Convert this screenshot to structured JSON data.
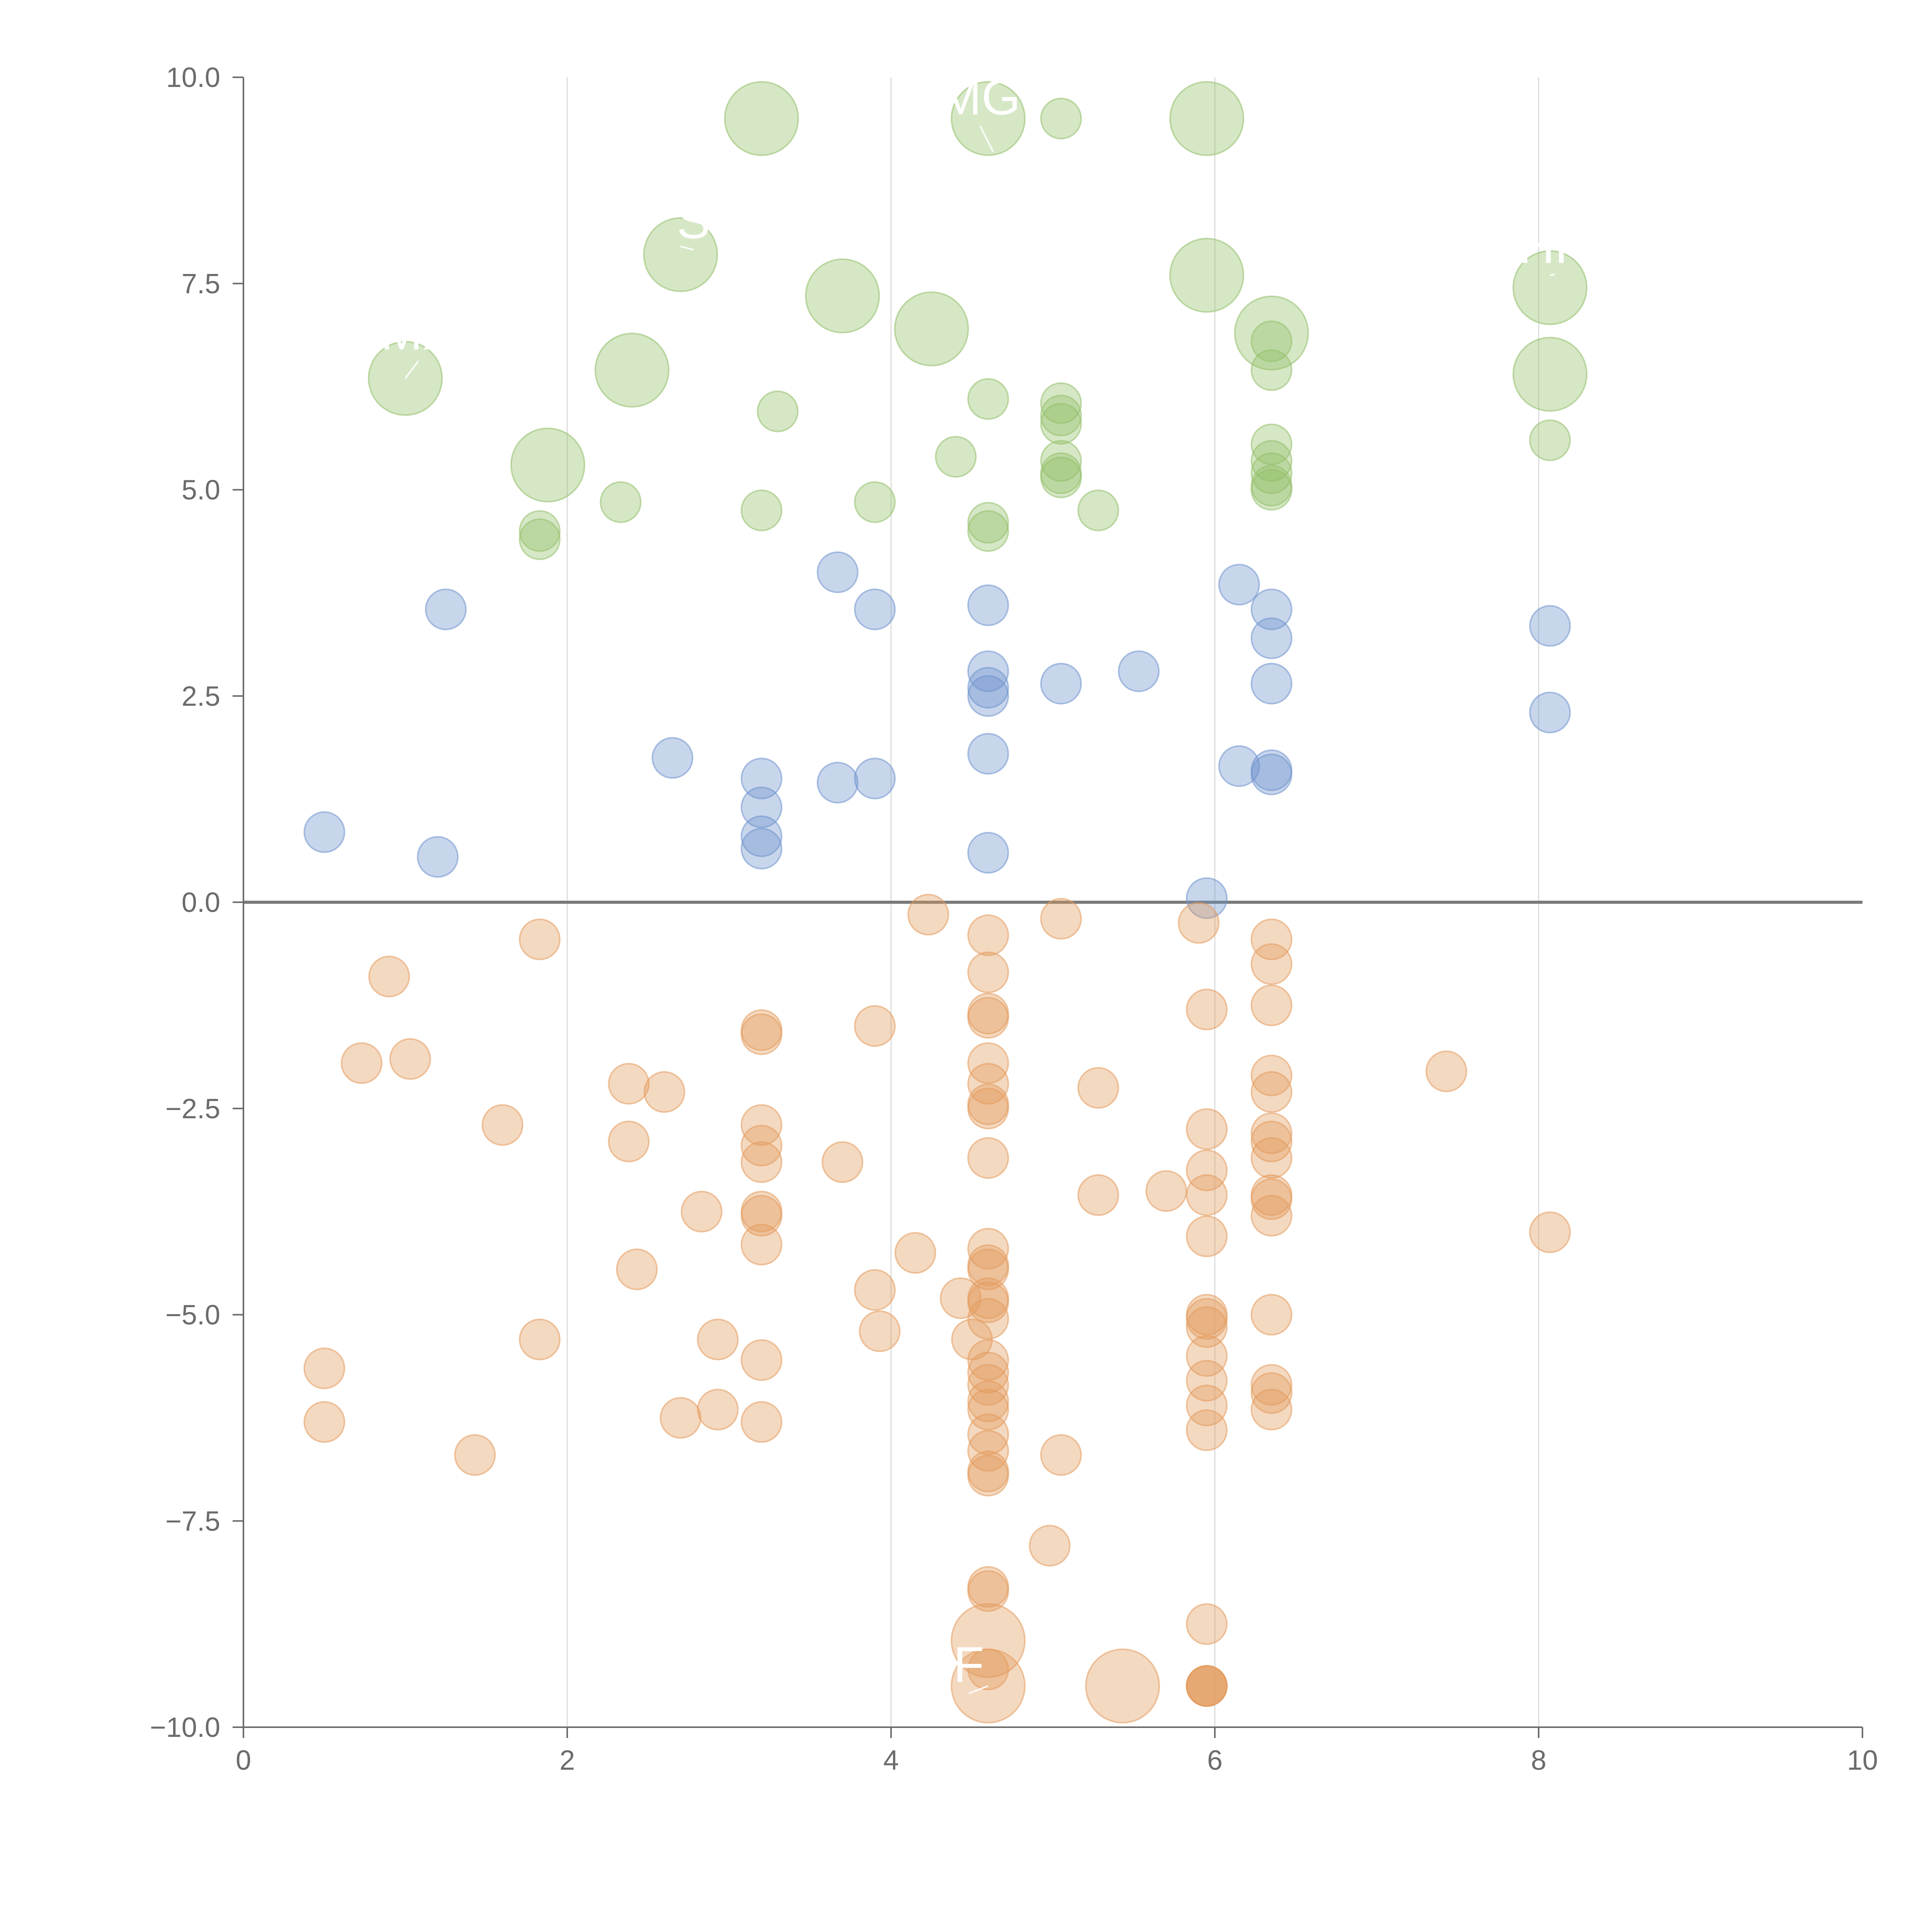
{
  "chart_data": {
    "type": "scatter",
    "title": "",
    "xlabel": "",
    "ylabel": "",
    "xlim": [
      0,
      10
    ],
    "ylim": [
      -10,
      10
    ],
    "grid": "vertical",
    "x_ticks": [
      "0",
      "2",
      "4",
      "6",
      "8",
      "10"
    ],
    "x_tick_values": [
      0,
      2,
      4,
      6,
      8,
      10
    ],
    "y_ticks": [
      "10.0",
      "7.5",
      "5.0",
      "2.5",
      "0.0",
      "−2.5",
      "−5.0",
      "−7.5",
      "−10.0"
    ],
    "y_tick_values": [
      10,
      7.5,
      5,
      2.5,
      0,
      -2.5,
      -5,
      -7.5,
      -10
    ],
    "reference_line_y": 0,
    "colors": {
      "green": "#93c06a",
      "blue": "#6f93cd",
      "orange": "#e39a5d",
      "axis": "#6b6b6b",
      "grid": "#dcdcdc"
    },
    "series": [
      {
        "name": "green",
        "color": "#93c06a",
        "points": [
          [
            3.2,
            9.5,
            3
          ],
          [
            4.6,
            9.5,
            3
          ],
          [
            5.05,
            9.5,
            1
          ],
          [
            5.95,
            9.5,
            3
          ],
          [
            2.7,
            7.85,
            3
          ],
          [
            3.7,
            7.35,
            3
          ],
          [
            5.95,
            7.6,
            3
          ],
          [
            8.07,
            7.45,
            3
          ],
          [
            1.0,
            6.35,
            3
          ],
          [
            2.4,
            6.45,
            3
          ],
          [
            4.25,
            6.95,
            3
          ],
          [
            6.35,
            6.9,
            3
          ],
          [
            8.07,
            6.4,
            3
          ],
          [
            1.88,
            5.3,
            3
          ],
          [
            3.3,
            5.95,
            1
          ],
          [
            4.6,
            6.1,
            1
          ],
          [
            5.05,
            6.05,
            1
          ],
          [
            5.05,
            5.9,
            1
          ],
          [
            5.05,
            5.8,
            1
          ],
          [
            6.35,
            6.8,
            1
          ],
          [
            6.35,
            6.45,
            1
          ],
          [
            6.35,
            5.55,
            1
          ],
          [
            6.35,
            5.35,
            1
          ],
          [
            6.35,
            5.2,
            1
          ],
          [
            6.35,
            5.05,
            1
          ],
          [
            6.35,
            5.0,
            1
          ],
          [
            8.07,
            5.6,
            1
          ],
          [
            4.4,
            5.4,
            1
          ],
          [
            5.05,
            5.35,
            1
          ],
          [
            5.05,
            5.2,
            1
          ],
          [
            5.05,
            5.15,
            1
          ],
          [
            1.83,
            4.5,
            1
          ],
          [
            1.83,
            4.4,
            1
          ],
          [
            2.33,
            4.85,
            1
          ],
          [
            3.2,
            4.75,
            1
          ],
          [
            3.9,
            4.85,
            1
          ],
          [
            4.6,
            4.6,
            1
          ],
          [
            4.6,
            4.5,
            1
          ],
          [
            5.28,
            4.75,
            1
          ]
        ]
      },
      {
        "name": "blue",
        "color": "#6f93cd",
        "points": [
          [
            1.25,
            3.55,
            1
          ],
          [
            3.67,
            4.0,
            1
          ],
          [
            3.9,
            3.55,
            1
          ],
          [
            4.6,
            3.6,
            1
          ],
          [
            6.15,
            3.85,
            1
          ],
          [
            6.35,
            3.55,
            1
          ],
          [
            6.35,
            3.2,
            1
          ],
          [
            8.07,
            3.35,
            1
          ],
          [
            4.6,
            2.8,
            1
          ],
          [
            4.6,
            2.6,
            1
          ],
          [
            4.6,
            2.5,
            1
          ],
          [
            5.05,
            2.65,
            1
          ],
          [
            5.53,
            2.8,
            1
          ],
          [
            6.35,
            2.65,
            1
          ],
          [
            8.07,
            2.3,
            1
          ],
          [
            2.65,
            1.75,
            1
          ],
          [
            3.2,
            1.5,
            1
          ],
          [
            3.2,
            1.15,
            1
          ],
          [
            3.67,
            1.45,
            1
          ],
          [
            3.9,
            1.5,
            1
          ],
          [
            4.6,
            1.8,
            1
          ],
          [
            6.15,
            1.65,
            1
          ],
          [
            6.35,
            1.6,
            1
          ],
          [
            6.35,
            1.55,
            1
          ],
          [
            0.5,
            0.85,
            1
          ],
          [
            1.2,
            0.55,
            1
          ],
          [
            3.2,
            0.8,
            1
          ],
          [
            3.2,
            0.65,
            1
          ],
          [
            4.6,
            0.6,
            1
          ],
          [
            5.95,
            0.05,
            1
          ]
        ]
      },
      {
        "name": "orange",
        "color": "#e39a5d",
        "points": [
          [
            4.23,
            -0.15,
            1
          ],
          [
            5.05,
            -0.2,
            1
          ],
          [
            5.9,
            -0.25,
            1
          ],
          [
            4.6,
            -0.4,
            1
          ],
          [
            6.35,
            -0.45,
            1
          ],
          [
            1.83,
            -0.45,
            1
          ],
          [
            0.9,
            -0.9,
            1
          ],
          [
            4.6,
            -0.85,
            1
          ],
          [
            6.35,
            -0.75,
            1
          ],
          [
            5.95,
            -1.3,
            1
          ],
          [
            6.35,
            -1.25,
            1
          ],
          [
            3.2,
            -1.6,
            1
          ],
          [
            3.2,
            -1.55,
            1
          ],
          [
            3.9,
            -1.5,
            1
          ],
          [
            4.6,
            -1.35,
            1
          ],
          [
            4.6,
            -1.4,
            1
          ],
          [
            0.73,
            -1.95,
            1
          ],
          [
            1.03,
            -1.9,
            1
          ],
          [
            4.6,
            -1.95,
            1
          ],
          [
            6.35,
            -2.1,
            1
          ],
          [
            7.43,
            -2.05,
            1
          ],
          [
            2.38,
            -2.2,
            1
          ],
          [
            2.6,
            -2.3,
            1
          ],
          [
            4.6,
            -2.2,
            1
          ],
          [
            5.28,
            -2.25,
            1
          ],
          [
            6.35,
            -2.3,
            1
          ],
          [
            4.6,
            -2.45,
            1
          ],
          [
            4.6,
            -2.5,
            1
          ],
          [
            1.6,
            -2.7,
            1
          ],
          [
            2.38,
            -2.9,
            1
          ],
          [
            3.2,
            -2.7,
            1
          ],
          [
            3.2,
            -2.95,
            1
          ],
          [
            3.2,
            -3.15,
            1
          ],
          [
            3.7,
            -3.15,
            1
          ],
          [
            4.6,
            -3.1,
            1
          ],
          [
            5.95,
            -2.75,
            1
          ],
          [
            5.95,
            -3.25,
            1
          ],
          [
            6.35,
            -2.8,
            1
          ],
          [
            6.35,
            -2.9,
            1
          ],
          [
            6.35,
            -3.1,
            1
          ],
          [
            5.28,
            -3.55,
            1
          ],
          [
            5.7,
            -3.5,
            1
          ],
          [
            5.95,
            -3.55,
            1
          ],
          [
            6.35,
            -3.55,
            1
          ],
          [
            6.35,
            -3.6,
            1
          ],
          [
            2.83,
            -3.75,
            1
          ],
          [
            3.2,
            -3.75,
            1
          ],
          [
            3.2,
            -3.8,
            1
          ],
          [
            6.35,
            -3.8,
            1
          ],
          [
            5.95,
            -4.05,
            1
          ],
          [
            8.07,
            -4.0,
            1
          ],
          [
            3.2,
            -4.15,
            1
          ],
          [
            4.15,
            -4.25,
            1
          ],
          [
            4.6,
            -4.2,
            1
          ],
          [
            2.43,
            -4.45,
            1
          ],
          [
            4.6,
            -4.4,
            1
          ],
          [
            4.6,
            -4.45,
            1
          ],
          [
            3.9,
            -4.7,
            1
          ],
          [
            4.43,
            -4.8,
            1
          ],
          [
            4.6,
            -4.8,
            1
          ],
          [
            4.6,
            -4.85,
            1
          ],
          [
            4.6,
            -5.05,
            1
          ],
          [
            5.95,
            -5.0,
            1
          ],
          [
            5.95,
            -5.05,
            1
          ],
          [
            5.95,
            -5.15,
            1
          ],
          [
            6.35,
            -5.0,
            1
          ],
          [
            1.83,
            -5.3,
            1
          ],
          [
            2.93,
            -5.3,
            1
          ],
          [
            3.93,
            -5.2,
            1
          ],
          [
            4.5,
            -5.3,
            1
          ],
          [
            0.5,
            -5.65,
            1
          ],
          [
            3.2,
            -5.55,
            1
          ],
          [
            4.6,
            -5.55,
            1
          ],
          [
            4.6,
            -5.7,
            1
          ],
          [
            4.6,
            -5.85,
            1
          ],
          [
            5.95,
            -5.5,
            1
          ],
          [
            5.95,
            -5.8,
            1
          ],
          [
            6.35,
            -5.85,
            1
          ],
          [
            6.35,
            -5.95,
            1
          ],
          [
            0.5,
            -6.3,
            1
          ],
          [
            2.7,
            -6.25,
            1
          ],
          [
            2.93,
            -6.15,
            1
          ],
          [
            3.2,
            -6.3,
            1
          ],
          [
            4.6,
            -6.05,
            1
          ],
          [
            4.6,
            -6.15,
            1
          ],
          [
            4.6,
            -6.45,
            1
          ],
          [
            4.6,
            -6.65,
            1
          ],
          [
            5.95,
            -6.1,
            1
          ],
          [
            5.95,
            -6.4,
            1
          ],
          [
            6.35,
            -6.15,
            1
          ],
          [
            1.43,
            -6.7,
            1
          ],
          [
            4.6,
            -6.9,
            1
          ],
          [
            4.6,
            -6.95,
            1
          ],
          [
            5.05,
            -6.7,
            1
          ],
          [
            4.98,
            -7.8,
            1
          ],
          [
            4.6,
            -8.3,
            1
          ],
          [
            4.6,
            -8.35,
            1
          ],
          [
            5.95,
            -8.75,
            1
          ],
          [
            4.6,
            -8.95,
            3
          ],
          [
            4.6,
            -9.3,
            1
          ],
          [
            4.6,
            -9.5,
            3
          ],
          [
            5.43,
            -9.5,
            3
          ],
          [
            5.95,
            -9.5,
            1
          ],
          [
            5.95,
            -9.5,
            1
          ],
          [
            5.95,
            -9.5,
            1
          ],
          [
            5.95,
            -9.5,
            1
          ]
        ]
      }
    ],
    "annotations": [
      {
        "text": "MG",
        "x": 4.55,
        "y": 9.55,
        "px": 4.63,
        "py": 9.1
      },
      {
        "text": "S",
        "x": 2.78,
        "y": 8.05,
        "px": 2.7,
        "py": 7.95
      },
      {
        "text": "HR",
        "x": 8.1,
        "y": 7.75,
        "px": 8.07,
        "py": 7.6
      },
      {
        "text": "MX",
        "x": 1.08,
        "y": 6.7,
        "px": 1.0,
        "py": 6.35
      },
      {
        "text": "F",
        "x": 4.48,
        "y": -9.45,
        "px": 4.6,
        "py": -9.5
      }
    ]
  }
}
